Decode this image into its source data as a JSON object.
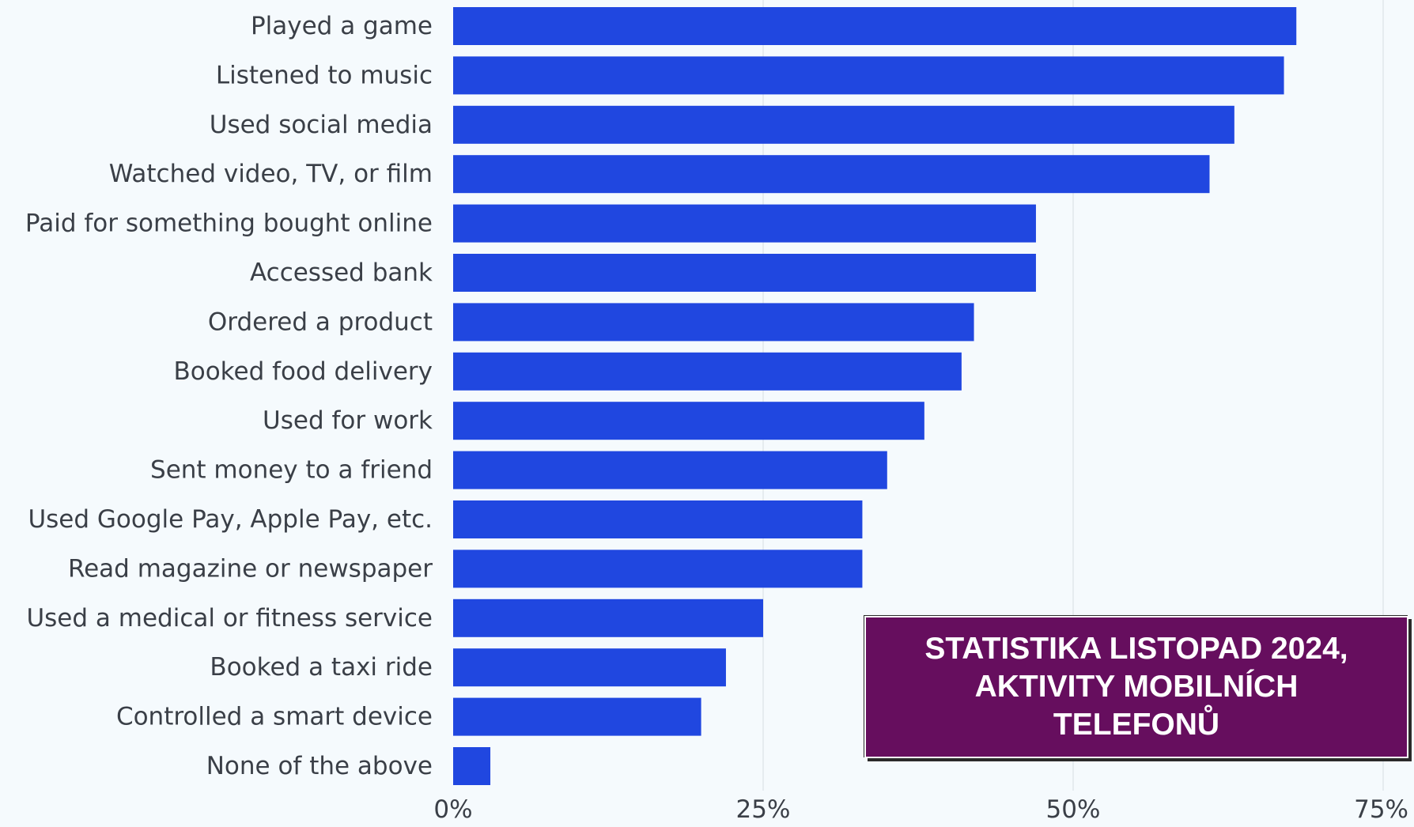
{
  "chart_data": {
    "type": "bar",
    "orientation": "horizontal",
    "title": "STATISTIKA LISTOPAD 2024,\nAKTIVITY MOBILNÍCH\nTELEFONŮ",
    "xlabel": "",
    "ylabel": "",
    "categories": [
      "Played a game",
      "Listened to music",
      "Used social media",
      "Watched video, TV, or film",
      "Paid for something bought online",
      "Accessed bank",
      "Ordered a product",
      "Booked food delivery",
      "Used for work",
      "Sent money to a friend",
      "Used Google Pay, Apple Pay, etc.",
      "Read magazine or newspaper",
      "Used a medical or fitness service",
      "Booked a taxi ride",
      "Controlled a smart device",
      "None of the above"
    ],
    "values": [
      68,
      67,
      63,
      61,
      47,
      47,
      42,
      41,
      38,
      35,
      33,
      33,
      25,
      22,
      20,
      3
    ],
    "xlim": [
      0,
      75
    ],
    "ticks": [
      0,
      25,
      50,
      75
    ],
    "tick_labels": [
      "0%",
      "25%",
      "50%",
      "75%"
    ],
    "grid": true,
    "bar_color": "#2047e0",
    "title_box_color": "#660e5e"
  }
}
